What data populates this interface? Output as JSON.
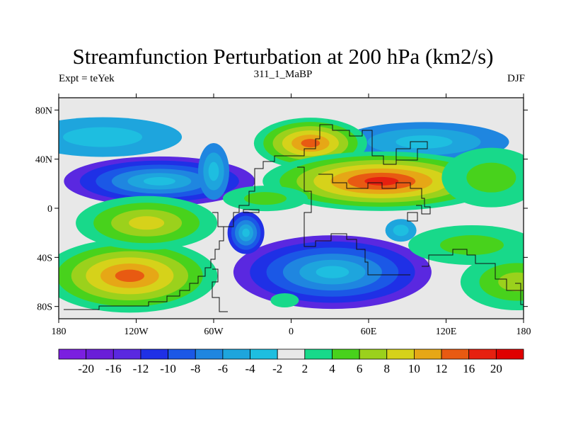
{
  "chart_data": {
    "type": "contour_map",
    "title": "Streamfunction Perturbation at 200 hPa (km2/s)",
    "left_label": "Expt = teYek",
    "center_label": "311_1_MaBP",
    "right_label": "DJF",
    "x_ticks": [
      "180",
      "120W",
      "60W",
      "0",
      "60E",
      "120E",
      "180"
    ],
    "y_ticks": [
      "80N",
      "40N",
      "0",
      "40S",
      "80S"
    ],
    "xlim": [
      -180,
      180
    ],
    "ylim": [
      -90,
      90
    ],
    "colorbar_labels": [
      "-20",
      "-16",
      "-12",
      "-10",
      "-8",
      "-6",
      "-4",
      "-2",
      "2",
      "4",
      "6",
      "8",
      "10",
      "12",
      "16",
      "20"
    ],
    "colors": [
      "#7b1fe0",
      "#6a1ed8",
      "#5a28e0",
      "#1f30e6",
      "#1b58e6",
      "#1f86e0",
      "#1ea5dd",
      "#1ebee0",
      "#e8e8e8",
      "#18d98a",
      "#48d21c",
      "#9bd11c",
      "#d6d21a",
      "#e6a716",
      "#e85a12",
      "#e62010",
      "#e00000"
    ],
    "features": [
      {
        "name": "cyclone-north-pacific",
        "lon": -146,
        "lat": 58,
        "value": -5
      },
      {
        "name": "cyclone-north-atlantic",
        "lon": -102,
        "lat": 22,
        "value": -13
      },
      {
        "name": "cyclone-east-pacific-north",
        "lon": -60,
        "lat": 30,
        "value": -6
      },
      {
        "name": "cyclone-north-asia",
        "lon": 103,
        "lat": 54,
        "value": -6
      },
      {
        "name": "cyclone-southern-africa",
        "lon": 32,
        "lat": -52,
        "value": -14
      },
      {
        "name": "cyclone-south-atlantic",
        "lon": -35,
        "lat": -20,
        "value": -10
      },
      {
        "name": "anticyclone-europe",
        "lon": 15,
        "lat": 53,
        "value": 13
      },
      {
        "name": "anticyclone-south-asia",
        "lon": 70,
        "lat": 22,
        "value": 18
      },
      {
        "name": "anticyclone-south-pacific",
        "lon": -125,
        "lat": -55,
        "value": 14
      },
      {
        "name": "anticyclone-east-pacific-south",
        "lon": -112,
        "lat": -12,
        "value": 9
      },
      {
        "name": "anticyclone-west-pacific",
        "lon": 155,
        "lat": 25,
        "value": 4
      },
      {
        "name": "anticyclone-south-indian-ocean",
        "lon": 140,
        "lat": -30,
        "value": 4
      },
      {
        "name": "anticyclone-southeast-pacific",
        "lon": 175,
        "lat": -60,
        "value": 6
      },
      {
        "name": "anticyclone-tropical-atlantic",
        "lon": -20,
        "lat": 8,
        "value": 5
      },
      {
        "name": "cyclone-south-indian",
        "lon": 85,
        "lat": -18,
        "value": -4
      },
      {
        "name": "anticyclone-south-south-atlantic",
        "lon": -5,
        "lat": -75,
        "value": 2
      }
    ]
  }
}
